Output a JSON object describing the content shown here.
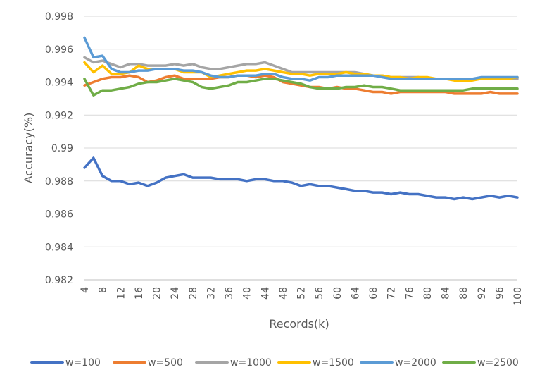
{
  "chart_data": {
    "type": "line",
    "title": "",
    "xlabel": "Records(k)",
    "ylabel": "Accuracy(%)",
    "ylim": [
      0.982,
      0.998
    ],
    "yticks": [
      0.982,
      0.984,
      0.986,
      0.988,
      0.99,
      0.992,
      0.994,
      0.996,
      0.998
    ],
    "ytick_labels": [
      "0.982",
      "0.984",
      "0.986",
      "0.988",
      "0.99",
      "0.992",
      "0.994",
      "0.996",
      "0.998"
    ],
    "x": [
      4,
      6,
      8,
      10,
      12,
      14,
      16,
      18,
      20,
      22,
      24,
      26,
      28,
      30,
      32,
      34,
      36,
      38,
      40,
      42,
      44,
      46,
      48,
      50,
      52,
      54,
      56,
      58,
      60,
      62,
      64,
      66,
      68,
      70,
      72,
      74,
      76,
      78,
      80,
      82,
      84,
      86,
      88,
      90,
      92,
      94,
      96,
      98,
      100
    ],
    "xtick_labels": [
      "4",
      "8",
      "12",
      "16",
      "20",
      "24",
      "28",
      "32",
      "36",
      "40",
      "44",
      "48",
      "52",
      "56",
      "60",
      "64",
      "68",
      "72",
      "76",
      "80",
      "84",
      "88",
      "92",
      "96",
      "100"
    ],
    "grid": true,
    "legend": "bottom",
    "series": [
      {
        "name": "w=100",
        "color": "#4472C4",
        "values": [
          0.9888,
          0.9894,
          0.9883,
          0.988,
          0.988,
          0.9878,
          0.9879,
          0.9877,
          0.9879,
          0.9882,
          0.9883,
          0.9884,
          0.9882,
          0.9882,
          0.9882,
          0.9881,
          0.9881,
          0.9881,
          0.988,
          0.9881,
          0.9881,
          0.988,
          0.988,
          0.9879,
          0.9877,
          0.9878,
          0.9877,
          0.9877,
          0.9876,
          0.9875,
          0.9874,
          0.9874,
          0.9873,
          0.9873,
          0.9872,
          0.9873,
          0.9872,
          0.9872,
          0.9871,
          0.987,
          0.987,
          0.9869,
          0.987,
          0.9869,
          0.987,
          0.9871,
          0.987,
          0.9871,
          0.987
        ]
      },
      {
        "name": "w=500",
        "color": "#ED7D31",
        "values": [
          0.9938,
          0.994,
          0.9942,
          0.9943,
          0.9943,
          0.9944,
          0.9943,
          0.994,
          0.9941,
          0.9943,
          0.9944,
          0.9942,
          0.9942,
          0.9942,
          0.9942,
          0.9943,
          0.9943,
          0.9944,
          0.9944,
          0.9943,
          0.9944,
          0.9943,
          0.994,
          0.9939,
          0.9938,
          0.9937,
          0.9937,
          0.9936,
          0.9937,
          0.9936,
          0.9936,
          0.9935,
          0.9934,
          0.9934,
          0.9933,
          0.9934,
          0.9934,
          0.9934,
          0.9934,
          0.9934,
          0.9934,
          0.9933,
          0.9933,
          0.9933,
          0.9933,
          0.9934,
          0.9933,
          0.9933,
          0.9933
        ]
      },
      {
        "name": "w=1000",
        "color": "#A5A5A5",
        "values": [
          0.9955,
          0.9952,
          0.9953,
          0.9951,
          0.9949,
          0.9951,
          0.9951,
          0.995,
          0.995,
          0.995,
          0.9951,
          0.995,
          0.9951,
          0.9949,
          0.9948,
          0.9948,
          0.9949,
          0.995,
          0.9951,
          0.9951,
          0.9952,
          0.995,
          0.9948,
          0.9946,
          0.9946,
          0.9946,
          0.9946,
          0.9946,
          0.9946,
          0.9946,
          0.9946,
          0.9945,
          0.9944,
          0.9944,
          0.9943,
          0.9943,
          0.9943,
          0.9943,
          0.9942,
          0.9942,
          0.9942,
          0.9942,
          0.9942,
          0.9942,
          0.9942,
          0.9942,
          0.9942,
          0.9942,
          0.9942
        ]
      },
      {
        "name": "w=1500",
        "color": "#FFC000",
        "values": [
          0.9952,
          0.9946,
          0.995,
          0.9945,
          0.9945,
          0.9946,
          0.995,
          0.9948,
          0.9948,
          0.9948,
          0.9948,
          0.9946,
          0.9946,
          0.9946,
          0.9943,
          0.9944,
          0.9945,
          0.9946,
          0.9947,
          0.9947,
          0.9948,
          0.9947,
          0.9946,
          0.9945,
          0.9945,
          0.9944,
          0.9945,
          0.9945,
          0.9945,
          0.9946,
          0.9945,
          0.9945,
          0.9944,
          0.9944,
          0.9943,
          0.9943,
          0.9942,
          0.9943,
          0.9943,
          0.9942,
          0.9942,
          0.9941,
          0.9941,
          0.9941,
          0.9942,
          0.9942,
          0.9942,
          0.9942,
          0.9943
        ]
      },
      {
        "name": "w=2000",
        "color": "#5B9BD5",
        "values": [
          0.9967,
          0.9955,
          0.9956,
          0.9948,
          0.9946,
          0.9946,
          0.9947,
          0.9947,
          0.9948,
          0.9948,
          0.9948,
          0.9947,
          0.9947,
          0.9946,
          0.9944,
          0.9943,
          0.9943,
          0.9944,
          0.9944,
          0.9944,
          0.9945,
          0.9945,
          0.9943,
          0.9942,
          0.9942,
          0.9941,
          0.9943,
          0.9943,
          0.9944,
          0.9944,
          0.9944,
          0.9944,
          0.9944,
          0.9943,
          0.9942,
          0.9942,
          0.9942,
          0.9942,
          0.9942,
          0.9942,
          0.9942,
          0.9942,
          0.9942,
          0.9942,
          0.9943,
          0.9943,
          0.9943,
          0.9943,
          0.9943
        ]
      },
      {
        "name": "w=2500",
        "color": "#70AD47",
        "values": [
          0.9942,
          0.9932,
          0.9935,
          0.9935,
          0.9936,
          0.9937,
          0.9939,
          0.994,
          0.994,
          0.9941,
          0.9942,
          0.9941,
          0.994,
          0.9937,
          0.9936,
          0.9937,
          0.9938,
          0.994,
          0.994,
          0.9941,
          0.9942,
          0.9942,
          0.9941,
          0.994,
          0.9939,
          0.9937,
          0.9936,
          0.9936,
          0.9936,
          0.9937,
          0.9937,
          0.9938,
          0.9937,
          0.9937,
          0.9936,
          0.9935,
          0.9935,
          0.9935,
          0.9935,
          0.9935,
          0.9935,
          0.9935,
          0.9935,
          0.9936,
          0.9936,
          0.9936,
          0.9936,
          0.9936,
          0.9936
        ]
      }
    ]
  }
}
